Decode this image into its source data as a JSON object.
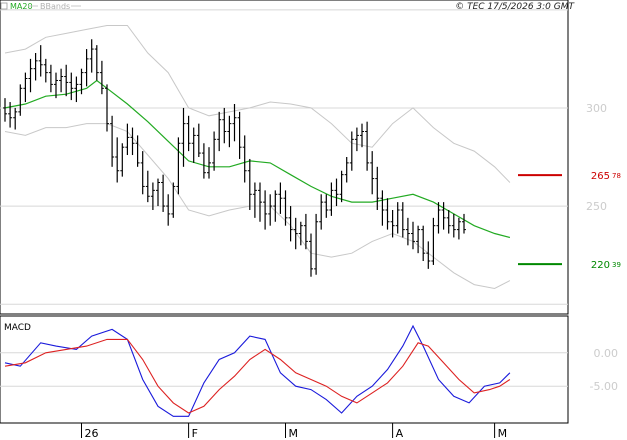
{
  "header": {
    "legend_ma": "MA20",
    "legend_bb": "BBands",
    "copyright": "© TEC 17/5/2026 3:0 GMT"
  },
  "colors": {
    "price_bars": "#000000",
    "ma20": "#22aa22",
    "bbands": "#c8c8c8",
    "macd_line": "#1a1adb",
    "signal_line": "#dd2222",
    "resistance": "#cc0000",
    "support": "#008800",
    "grid": "#d8d8d8",
    "axis_text": "#cccccc"
  },
  "chart_data": [
    {
      "type": "ohlc",
      "panel": "price",
      "x_ticks": [
        {
          "label": "26",
          "index": 15
        },
        {
          "label": "F",
          "index": 36
        },
        {
          "label": "M",
          "index": 55
        },
        {
          "label": "A",
          "index": 76
        },
        {
          "label": "M",
          "index": 96
        }
      ],
      "y_ticks": [
        {
          "label": "300",
          "value": 300
        },
        {
          "label": "250",
          "value": 250
        }
      ],
      "ylim": [
        195,
        355
      ],
      "levels": [
        {
          "name": "resistance",
          "value": 265.78,
          "label": "265",
          "label_decimals": "78",
          "color": "#cc0000"
        },
        {
          "name": "support",
          "value": 220.39,
          "label": "220",
          "label_decimals": "39",
          "color": "#008800"
        }
      ],
      "ohlc": [
        [
          300,
          305,
          293,
          297
        ],
        [
          297,
          303,
          290,
          295
        ],
        [
          295,
          300,
          289,
          298
        ],
        [
          298,
          312,
          296,
          310
        ],
        [
          310,
          318,
          303,
          315
        ],
        [
          315,
          325,
          308,
          320
        ],
        [
          320,
          328,
          314,
          324
        ],
        [
          324,
          332,
          316,
          322
        ],
        [
          322,
          325,
          313,
          318
        ],
        [
          318,
          322,
          308,
          312
        ],
        [
          312,
          318,
          305,
          314
        ],
        [
          314,
          320,
          308,
          316
        ],
        [
          316,
          322,
          306,
          313
        ],
        [
          313,
          318,
          304,
          310
        ],
        [
          310,
          316,
          303,
          312
        ],
        [
          312,
          320,
          307,
          318
        ],
        [
          318,
          330,
          311,
          325
        ],
        [
          325,
          335,
          318,
          330
        ],
        [
          330,
          332,
          314,
          318
        ],
        [
          318,
          324,
          307,
          310
        ],
        [
          310,
          312,
          288,
          292
        ],
        [
          292,
          296,
          270,
          275
        ],
        [
          275,
          285,
          262,
          268
        ],
        [
          268,
          282,
          265,
          280
        ],
        [
          280,
          292,
          276,
          285
        ],
        [
          285,
          290,
          276,
          282
        ],
        [
          282,
          286,
          270,
          272
        ],
        [
          272,
          278,
          256,
          260
        ],
        [
          260,
          268,
          252,
          255
        ],
        [
          255,
          262,
          248,
          258
        ],
        [
          258,
          264,
          250,
          262
        ],
        [
          262,
          266,
          247,
          250
        ],
        [
          250,
          256,
          240,
          246
        ],
        [
          246,
          262,
          244,
          260
        ],
        [
          260,
          285,
          256,
          282
        ],
        [
          282,
          300,
          270,
          292
        ],
        [
          292,
          296,
          278,
          282
        ],
        [
          282,
          290,
          272,
          286
        ],
        [
          286,
          292,
          275,
          277
        ],
        [
          277,
          282,
          264,
          267
        ],
        [
          267,
          280,
          264,
          272
        ],
        [
          272,
          288,
          268,
          284
        ],
        [
          284,
          298,
          278,
          294
        ],
        [
          294,
          300,
          282,
          288
        ],
        [
          288,
          296,
          280,
          292
        ],
        [
          292,
          302,
          283,
          295
        ],
        [
          295,
          298,
          274,
          280
        ],
        [
          280,
          286,
          262,
          268
        ],
        [
          268,
          274,
          248,
          256
        ],
        [
          256,
          262,
          244,
          258
        ],
        [
          258,
          262,
          242,
          252
        ],
        [
          252,
          258,
          238,
          246
        ],
        [
          246,
          256,
          240,
          250
        ],
        [
          250,
          258,
          242,
          256
        ],
        [
          256,
          262,
          246,
          254
        ],
        [
          254,
          258,
          240,
          244
        ],
        [
          244,
          250,
          232,
          238
        ],
        [
          238,
          244,
          228,
          236
        ],
        [
          236,
          242,
          230,
          240
        ],
        [
          240,
          246,
          228,
          232
        ],
        [
          232,
          236,
          214,
          218
        ],
        [
          218,
          246,
          215,
          242
        ],
        [
          242,
          256,
          238,
          252
        ],
        [
          252,
          256,
          244,
          248
        ],
        [
          248,
          262,
          245,
          258
        ],
        [
          258,
          264,
          250,
          256
        ],
        [
          256,
          268,
          252,
          266
        ],
        [
          266,
          275,
          262,
          272
        ],
        [
          272,
          288,
          268,
          284
        ],
        [
          284,
          290,
          278,
          286
        ],
        [
          286,
          292,
          280,
          288
        ],
        [
          288,
          293,
          268,
          272
        ],
        [
          272,
          278,
          256,
          264
        ],
        [
          264,
          270,
          248,
          254
        ],
        [
          254,
          258,
          240,
          248
        ],
        [
          248,
          254,
          238,
          242
        ],
        [
          242,
          248,
          234,
          240
        ],
        [
          240,
          252,
          236,
          248
        ],
        [
          248,
          252,
          234,
          238
        ],
        [
          238,
          244,
          230,
          236
        ],
        [
          236,
          242,
          228,
          232
        ],
        [
          232,
          240,
          226,
          238
        ],
        [
          238,
          240,
          222,
          226
        ],
        [
          226,
          232,
          218,
          222
        ],
        [
          222,
          244,
          220,
          240
        ],
        [
          240,
          252,
          236,
          248
        ],
        [
          248,
          252,
          238,
          244
        ],
        [
          244,
          248,
          236,
          240
        ],
        [
          240,
          246,
          234,
          238
        ],
        [
          238,
          244,
          233,
          242
        ],
        [
          242,
          246,
          236,
          238
        ]
      ],
      "ma20": [
        [
          0,
          300
        ],
        [
          4,
          302
        ],
        [
          8,
          306
        ],
        [
          12,
          307
        ],
        [
          16,
          310
        ],
        [
          18,
          314
        ],
        [
          20,
          310
        ],
        [
          24,
          302
        ],
        [
          28,
          293
        ],
        [
          32,
          283
        ],
        [
          36,
          273
        ],
        [
          40,
          270
        ],
        [
          44,
          270
        ],
        [
          48,
          273
        ],
        [
          52,
          272
        ],
        [
          56,
          266
        ],
        [
          60,
          260
        ],
        [
          64,
          255
        ],
        [
          68,
          252
        ],
        [
          72,
          252
        ],
        [
          76,
          254
        ],
        [
          80,
          256
        ],
        [
          84,
          252
        ],
        [
          88,
          246
        ],
        [
          92,
          240
        ],
        [
          96,
          236
        ],
        [
          99,
          234
        ]
      ],
      "bb_upper": [
        [
          0,
          328
        ],
        [
          4,
          330
        ],
        [
          8,
          336
        ],
        [
          12,
          338
        ],
        [
          16,
          340
        ],
        [
          20,
          342
        ],
        [
          24,
          342
        ],
        [
          28,
          328
        ],
        [
          32,
          318
        ],
        [
          36,
          300
        ],
        [
          40,
          296
        ],
        [
          44,
          298
        ],
        [
          48,
          300
        ],
        [
          52,
          303
        ],
        [
          56,
          302
        ],
        [
          60,
          300
        ],
        [
          64,
          292
        ],
        [
          68,
          282
        ],
        [
          72,
          280
        ],
        [
          76,
          292
        ],
        [
          80,
          300
        ],
        [
          84,
          290
        ],
        [
          88,
          282
        ],
        [
          92,
          278
        ],
        [
          96,
          270
        ],
        [
          99,
          262
        ]
      ],
      "bb_lower": [
        [
          0,
          288
        ],
        [
          4,
          286
        ],
        [
          8,
          290
        ],
        [
          12,
          290
        ],
        [
          16,
          292
        ],
        [
          20,
          292
        ],
        [
          24,
          288
        ],
        [
          28,
          276
        ],
        [
          32,
          264
        ],
        [
          36,
          248
        ],
        [
          40,
          245
        ],
        [
          44,
          248
        ],
        [
          48,
          250
        ],
        [
          52,
          250
        ],
        [
          56,
          240
        ],
        [
          60,
          226
        ],
        [
          64,
          224
        ],
        [
          68,
          226
        ],
        [
          72,
          232
        ],
        [
          76,
          236
        ],
        [
          80,
          232
        ],
        [
          84,
          224
        ],
        [
          88,
          216
        ],
        [
          92,
          210
        ],
        [
          96,
          208
        ],
        [
          99,
          212
        ]
      ]
    },
    {
      "type": "line",
      "panel": "macd",
      "title": "MACD",
      "y_ticks": [
        {
          "label": "0.00",
          "value": 0
        },
        {
          "label": "-5.00",
          "value": -5
        }
      ],
      "ylim": [
        -10.5,
        5.5
      ],
      "series": [
        {
          "name": "MACD",
          "color": "#1a1adb",
          "points": [
            [
              0,
              -1.5
            ],
            [
              3,
              -2.0
            ],
            [
              7,
              1.5
            ],
            [
              10,
              1.0
            ],
            [
              14,
              0.5
            ],
            [
              17,
              2.5
            ],
            [
              21,
              3.5
            ],
            [
              24,
              2.0
            ],
            [
              27,
              -4.0
            ],
            [
              30,
              -8.0
            ],
            [
              33,
              -9.5
            ],
            [
              36,
              -9.5
            ],
            [
              39,
              -4.5
            ],
            [
              42,
              -1.0
            ],
            [
              45,
              0.0
            ],
            [
              48,
              2.5
            ],
            [
              51,
              2.0
            ],
            [
              54,
              -3.0
            ],
            [
              57,
              -5.0
            ],
            [
              60,
              -5.5
            ],
            [
              63,
              -7.0
            ],
            [
              66,
              -9.0
            ],
            [
              69,
              -6.5
            ],
            [
              72,
              -5.0
            ],
            [
              75,
              -2.5
            ],
            [
              78,
              1.0
            ],
            [
              80,
              4.0
            ],
            [
              82,
              1.0
            ],
            [
              85,
              -4.0
            ],
            [
              88,
              -6.5
            ],
            [
              91,
              -7.5
            ],
            [
              94,
              -5.0
            ],
            [
              97,
              -4.5
            ],
            [
              99,
              -3.0
            ]
          ]
        },
        {
          "name": "Signal",
          "color": "#dd2222",
          "points": [
            [
              0,
              -2.0
            ],
            [
              4,
              -1.5
            ],
            [
              8,
              0.0
            ],
            [
              12,
              0.5
            ],
            [
              16,
              1.0
            ],
            [
              20,
              2.0
            ],
            [
              24,
              2.0
            ],
            [
              27,
              -1.0
            ],
            [
              30,
              -5.0
            ],
            [
              33,
              -7.5
            ],
            [
              36,
              -9.0
            ],
            [
              39,
              -8.0
            ],
            [
              42,
              -5.5
            ],
            [
              45,
              -3.5
            ],
            [
              48,
              -1.0
            ],
            [
              51,
              0.5
            ],
            [
              54,
              -1.0
            ],
            [
              57,
              -3.0
            ],
            [
              60,
              -4.0
            ],
            [
              63,
              -5.0
            ],
            [
              66,
              -6.5
            ],
            [
              69,
              -7.5
            ],
            [
              72,
              -6.0
            ],
            [
              75,
              -4.5
            ],
            [
              78,
              -2.0
            ],
            [
              81,
              1.5
            ],
            [
              83,
              1.0
            ],
            [
              86,
              -1.5
            ],
            [
              89,
              -4.0
            ],
            [
              92,
              -6.0
            ],
            [
              95,
              -5.5
            ],
            [
              97,
              -5.0
            ],
            [
              99,
              -4.0
            ]
          ]
        }
      ]
    }
  ]
}
